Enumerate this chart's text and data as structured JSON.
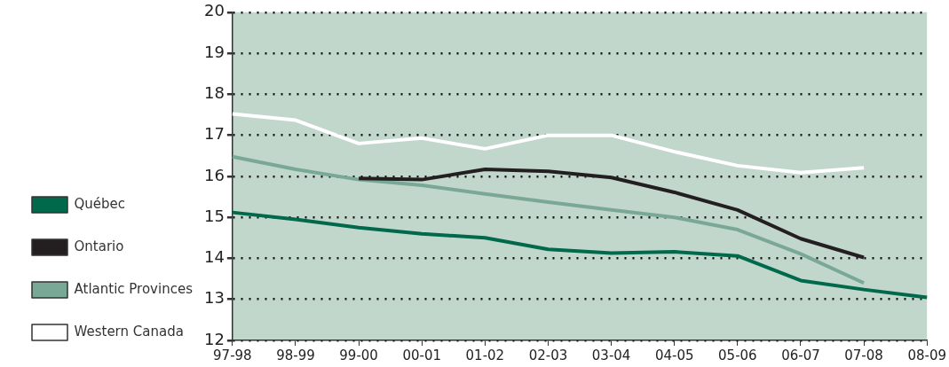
{
  "chart_data": {
    "type": "line",
    "categories": [
      "97-98",
      "98-99",
      "99-00",
      "00-01",
      "01-02",
      "02-03",
      "03-04",
      "04-05",
      "05-06",
      "06-07",
      "07-08",
      "08-09"
    ],
    "series": [
      {
        "name": "Québec",
        "color": "#00694b",
        "values": [
          15.12,
          14.95,
          14.75,
          14.6,
          14.5,
          14.22,
          14.13,
          14.16,
          14.06,
          13.46,
          13.24,
          13.05
        ]
      },
      {
        "name": "Ontario",
        "color": "#231f20",
        "values": [
          null,
          null,
          15.95,
          15.92,
          16.17,
          16.12,
          15.97,
          15.61,
          15.18,
          14.48,
          14.02,
          null
        ]
      },
      {
        "name": "Atlantic Provinces",
        "color": "#7aa896",
        "values": [
          16.48,
          16.17,
          15.92,
          15.78,
          15.57,
          15.37,
          15.18,
          15.0,
          14.7,
          14.11,
          13.4,
          null
        ]
      },
      {
        "name": "Western Canada",
        "color": "#ffffff",
        "values": [
          17.52,
          17.37,
          16.8,
          16.93,
          16.67,
          17.0,
          17.0,
          16.6,
          16.26,
          16.09,
          16.21,
          null
        ]
      }
    ],
    "ylim": [
      12,
      20
    ],
    "yticks": [
      12,
      13,
      14,
      15,
      16,
      17,
      18,
      19,
      20
    ],
    "grid": "y",
    "legend": "left",
    "marker": "none",
    "line_style": "solid"
  }
}
